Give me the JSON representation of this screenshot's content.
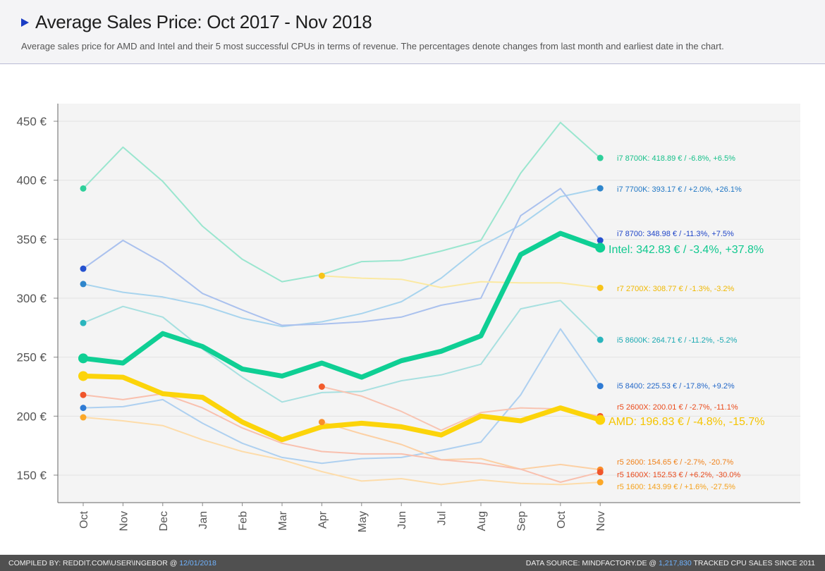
{
  "header": {
    "title": "Average Sales Price: Oct 2017 - Nov 2018",
    "subtitle": "Average sales price for AMD and Intel and their 5 most successful CPUs in terms of revenue. The percentages denote changes from last month and earliest date in the chart."
  },
  "footer": {
    "left_prefix": "COMPILED BY: REDDIT.COM\\USER\\INGEBOR @ ",
    "left_date": "12/01/2018",
    "right_prefix": "DATA SOURCE: MINDFACTORY.DE @ ",
    "right_count": "1,217,830",
    "right_suffix": " TRACKED CPU SALES SINCE 2011"
  },
  "chart_data": {
    "type": "line",
    "title": "Average Sales Price: Oct 2017 - Nov 2018",
    "categories": [
      "Oct",
      "Nov",
      "Dec",
      "Jan",
      "Feb",
      "Mar",
      "Apr",
      "May",
      "Jun",
      "Jul",
      "Aug",
      "Sep",
      "Oct",
      "Nov"
    ],
    "ylim": [
      130,
      460
    ],
    "yticks": [
      150,
      200,
      250,
      300,
      350,
      400,
      450
    ],
    "ytick_labels": [
      "150 €",
      "200 €",
      "250 €",
      "300 €",
      "350 €",
      "400 €",
      "450 €"
    ],
    "series": [
      {
        "name": "i7 8700K",
        "color": "#9ae6cf",
        "dot": "#2ecf9a",
        "width": 2,
        "start_dot": true,
        "label": "i7 8700K: 418.89 € / -6.8%, +6.5%",
        "label_color": "#17c08a",
        "label_size": 11,
        "values": [
          393,
          428,
          399,
          361,
          333,
          314,
          320,
          331,
          332,
          340,
          349,
          406,
          449,
          418.89
        ]
      },
      {
        "name": "i7 7700K",
        "color": "#a8d4ee",
        "dot": "#2f86cc",
        "width": 2,
        "start_dot": true,
        "label": "i7 7700K: 393.17 € / +2.0%, +26.1%",
        "label_color": "#1f76c4",
        "label_size": 11,
        "values": [
          312,
          305,
          301,
          294,
          283,
          276,
          280,
          287,
          297,
          317,
          344,
          362,
          386,
          393.17
        ]
      },
      {
        "name": "i7 8700",
        "color": "#aac1ee",
        "dot": "#2451cf",
        "width": 2,
        "start_dot": true,
        "label": "i7 8700: 348.98 € / -11.3%, +7.5%",
        "label_color": "#1f45c8",
        "label_size": 11,
        "values": [
          325,
          349,
          330,
          304,
          290,
          277,
          278,
          280,
          284,
          294,
          300,
          370,
          393,
          348.98
        ]
      },
      {
        "name": "r7 2700X",
        "color": "#fbe9a2",
        "dot": "#f7c318",
        "width": 2,
        "start_dot": false,
        "label": "r7 2700X: 308.77 € / -1.3%, -3.2%",
        "label_color": "#f0b800",
        "label_size": 11,
        "values": [
          null,
          null,
          null,
          null,
          null,
          null,
          319,
          317,
          316,
          309,
          314,
          313,
          313,
          308.77
        ]
      },
      {
        "name": "i5 8600K",
        "color": "#a7e0e0",
        "dot": "#2ab5bd",
        "width": 2,
        "start_dot": true,
        "label": "i5 8600K: 264.71 € / -11.2%, -5.2%",
        "label_color": "#1aa9b2",
        "label_size": 11,
        "values": [
          279,
          293,
          284,
          257,
          233,
          212,
          220,
          221,
          230,
          235,
          244,
          291,
          298,
          264.71
        ]
      },
      {
        "name": "i5 8400",
        "color": "#aed0f0",
        "dot": "#2f7bd4",
        "width": 2,
        "start_dot": true,
        "label": "i5 8400: 225.53 € / -17.8%, +9.2%",
        "label_color": "#2468c8",
        "label_size": 11,
        "values": [
          207,
          208,
          214,
          194,
          177,
          165,
          160,
          164,
          165,
          171,
          178,
          218,
          274,
          225.53
        ]
      },
      {
        "name": "r5 2600X",
        "color": "#f8c4b2",
        "dot": "#f25c2c",
        "width": 2,
        "start_dot": false,
        "label": "r5 2600X: 200.01 € / -2.7%, -11.1%",
        "label_color": "#ea4a1a",
        "label_size": 11,
        "values": [
          null,
          null,
          null,
          null,
          null,
          null,
          225,
          217,
          204,
          188,
          203,
          207,
          206,
          200.01
        ]
      },
      {
        "name": "r5 2600",
        "color": "#fcd0a4",
        "dot": "#f98e2b",
        "width": 2,
        "start_dot": false,
        "label": "r5 2600: 154.65 € / -2.7%, -20.7%",
        "label_color": "#f08018",
        "label_size": 11,
        "values": [
          null,
          null,
          null,
          null,
          null,
          null,
          195,
          185,
          176,
          163,
          164,
          155,
          159,
          154.65
        ]
      },
      {
        "name": "r5 1600X",
        "color": "#f9c0ae",
        "dot": "#f0562c",
        "width": 2,
        "start_dot": true,
        "label": "r5 1600X: 152.53 € / +6.2%, -30.0%",
        "label_color": "#e84a1c",
        "label_size": 11,
        "values": [
          218,
          214,
          219,
          207,
          190,
          177,
          170,
          168,
          168,
          163,
          160,
          155,
          144,
          152.53
        ]
      },
      {
        "name": "r5 1600",
        "color": "#fddcaa",
        "dot": "#fca828",
        "width": 2,
        "start_dot": true,
        "label": "r5 1600: 143.99 € / +1.6%, -27.5%",
        "label_color": "#f4a11c",
        "label_size": 11,
        "values": [
          199,
          196,
          192,
          180,
          170,
          163,
          153,
          145,
          147,
          142,
          146,
          143,
          142,
          143.99
        ]
      },
      {
        "name": "AMD",
        "color": "#fcd40a",
        "dot": "#fcd40a",
        "width": 7,
        "start_dot": true,
        "label": "AMD: 196.83 € / -4.8%, -15.7%",
        "label_color": "#f5c400",
        "label_size": 16,
        "values": [
          234,
          233,
          219,
          216,
          195,
          180,
          191,
          194,
          191,
          184,
          200,
          196,
          207,
          196.83
        ]
      },
      {
        "name": "Intel",
        "color": "#0fcf94",
        "dot": "#0fcf94",
        "width": 7,
        "start_dot": true,
        "label": "Intel: 342.83 € / -3.4%, +37.8%",
        "label_color": "#10c98f",
        "label_size": 16,
        "values": [
          249,
          245,
          270,
          259,
          240,
          234,
          245,
          233,
          247,
          255,
          268,
          337,
          355,
          342.83
        ]
      }
    ]
  }
}
